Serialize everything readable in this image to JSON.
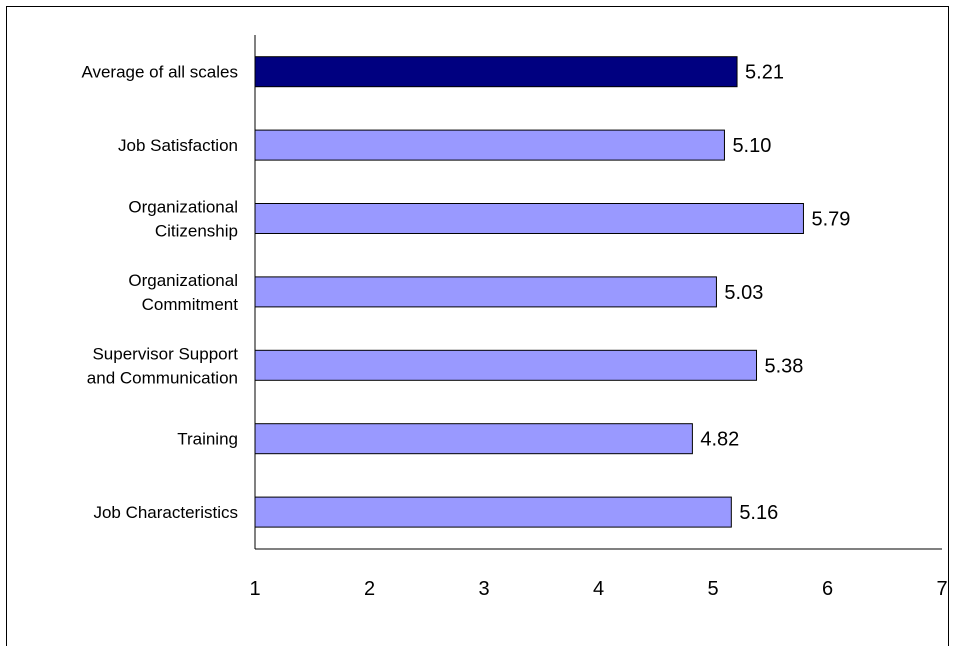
{
  "chart_data": {
    "type": "bar",
    "orientation": "horizontal",
    "categories": [
      [
        "Average of all scales"
      ],
      [
        "Job Satisfaction"
      ],
      [
        "Organizational",
        "Citizenship"
      ],
      [
        "Organizational",
        "Commitment"
      ],
      [
        "Supervisor Support",
        "and Communication"
      ],
      [
        "Training"
      ],
      [
        "Job Characteristics"
      ]
    ],
    "values": [
      5.21,
      5.1,
      5.79,
      5.03,
      5.38,
      4.82,
      5.16
    ],
    "value_labels": [
      "5.21",
      "5.10",
      "5.79",
      "5.03",
      "5.38",
      "4.82",
      "5.16"
    ],
    "xlim": [
      1,
      7
    ],
    "xticks": [
      1,
      2,
      3,
      4,
      5,
      6,
      7
    ],
    "grid": false,
    "legend": "none",
    "colors": {
      "highlight": "#000080",
      "bar": "#9999ff",
      "bar_edge": "#000000"
    },
    "highlight_index": 0
  }
}
